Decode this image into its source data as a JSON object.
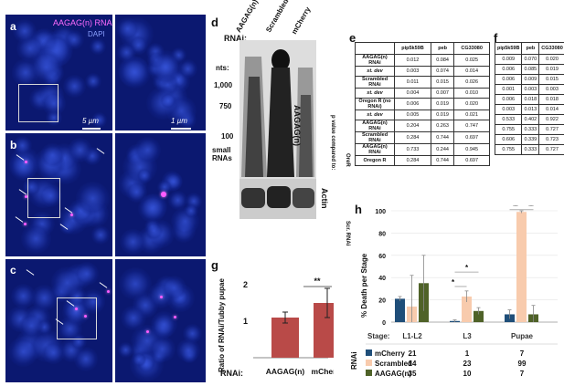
{
  "figure": {
    "panel_letters": {
      "a": "a",
      "b": "b",
      "c": "c",
      "d": "d",
      "e": "e",
      "f": "f",
      "g": "g",
      "h": "h"
    },
    "panel_a": {
      "legend_rna": "AAGAG(n) RNA",
      "legend_dapi": "DAPI",
      "scale_left": "5 µm",
      "scale_right": "1 µm"
    },
    "panel_d": {
      "rnai_label": "RNAi:",
      "lanes": [
        "AAGAG(n)",
        "Scrambled",
        "mCherry"
      ],
      "nts_label": "nts:",
      "markers": [
        "1,000",
        "750",
        "100"
      ],
      "small_rnas": "small RNAs",
      "probe": "AAGAG(n)",
      "loading": "Actin"
    },
    "panel_e": {
      "headers": [
        "pip5k59B",
        "peb",
        "CG33080"
      ],
      "rows": [
        {
          "label": "AAGAG(n) RNAi",
          "values": [
            "0.012",
            "0.084",
            "0.025"
          ]
        },
        {
          "label": "st. dev",
          "values": [
            "0.003",
            "0.074",
            "0.014"
          ]
        },
        {
          "label": "Scrambled RNAi",
          "values": [
            "0.011",
            "0.015",
            "0.026"
          ]
        },
        {
          "label": "st. dev",
          "values": [
            "0.004",
            "0.007",
            "0.010"
          ]
        },
        {
          "label": "Oregon R (no RNAi)",
          "values": [
            "0.006",
            "0.019",
            "0.020"
          ]
        },
        {
          "label": "st. dev",
          "values": [
            "0.005",
            "0.019",
            "0.021"
          ]
        },
        {
          "label": "AAGAG(n) RNAi",
          "values": [
            "0.204",
            "0.263",
            "0.747"
          ]
        },
        {
          "label": "Scrambled RNAi",
          "values": [
            "0.284",
            "0.744",
            "0.697"
          ]
        },
        {
          "label": "AAGAG(n) RNAi",
          "values": [
            "0.733",
            "0.244",
            "0.945"
          ]
        },
        {
          "label": "Oregon R",
          "values": [
            "0.284",
            "0.744",
            "0.697"
          ]
        }
      ],
      "pvalue_label": "p value compared to:",
      "group_ore": "OreR",
      "group_scr": "Scr. RNAi"
    },
    "panel_f": {
      "headers": [
        "pip5k59B",
        "peb",
        "CG33080"
      ],
      "rows": [
        [
          "0.009",
          "0.070",
          "0.020"
        ],
        [
          "0.006",
          "0.085",
          "0.019"
        ],
        [
          "0.006",
          "0.009",
          "0.015"
        ],
        [
          "0.001",
          "0.003",
          "0.003"
        ],
        [
          "0.006",
          "0.018",
          "0.018"
        ],
        [
          "0.003",
          "0.013",
          "0.014"
        ],
        [
          "0.533",
          "0.402",
          "0.922"
        ],
        [
          "0.755",
          "0.333",
          "0.727"
        ],
        [
          "0.606",
          "0.339",
          "0.723"
        ],
        [
          "0.755",
          "0.333",
          "0.727"
        ]
      ]
    },
    "panel_g": {
      "ylabel": "Ratio of RNAi/Tubby pupae",
      "y_ticks": [
        "2",
        "1"
      ],
      "rnai_label": "RNAi:",
      "sig": "**"
    },
    "panel_h": {
      "ylabel": "% Death per Stage",
      "y_ticks": [
        "100",
        "80",
        "60",
        "40",
        "20",
        "0"
      ],
      "stage_label": "Stage:",
      "side_label": "RNAi",
      "sig_l3_top": "*",
      "sig_l3_bottom": "*",
      "sig_pupae_left": "**",
      "sig_pupae_right": "**"
    }
  },
  "chart_data": [
    {
      "type": "bar",
      "title": "",
      "xlabel": "RNAi:",
      "ylabel": "Ratio of RNAi/Tubby pupae",
      "ylim": [
        0,
        2
      ],
      "categories": [
        "AAGAG(n)",
        "mCherry"
      ],
      "values": [
        1.1,
        1.5
      ],
      "error": [
        0.15,
        0.4
      ],
      "colors": [
        "#b94a48",
        "#b94a48"
      ]
    },
    {
      "type": "bar",
      "title": "",
      "xlabel": "Stage:",
      "ylabel": "% Death per Stage",
      "ylim": [
        0,
        100
      ],
      "categories": [
        "L1-L2",
        "L3",
        "Pupae"
      ],
      "series": [
        {
          "name": "mCherry",
          "values": [
            21,
            1,
            7
          ],
          "color": "#1f4e79"
        },
        {
          "name": "Scrambled",
          "values": [
            14,
            23,
            99
          ],
          "color": "#f8cbad"
        },
        {
          "name": "AAGAG(n)",
          "values": [
            35,
            10,
            7
          ],
          "color": "#4f6228"
        }
      ],
      "errors": [
        [
          2,
          1,
          4
        ],
        [
          28,
          5,
          1
        ],
        [
          25,
          3,
          8
        ]
      ]
    }
  ]
}
